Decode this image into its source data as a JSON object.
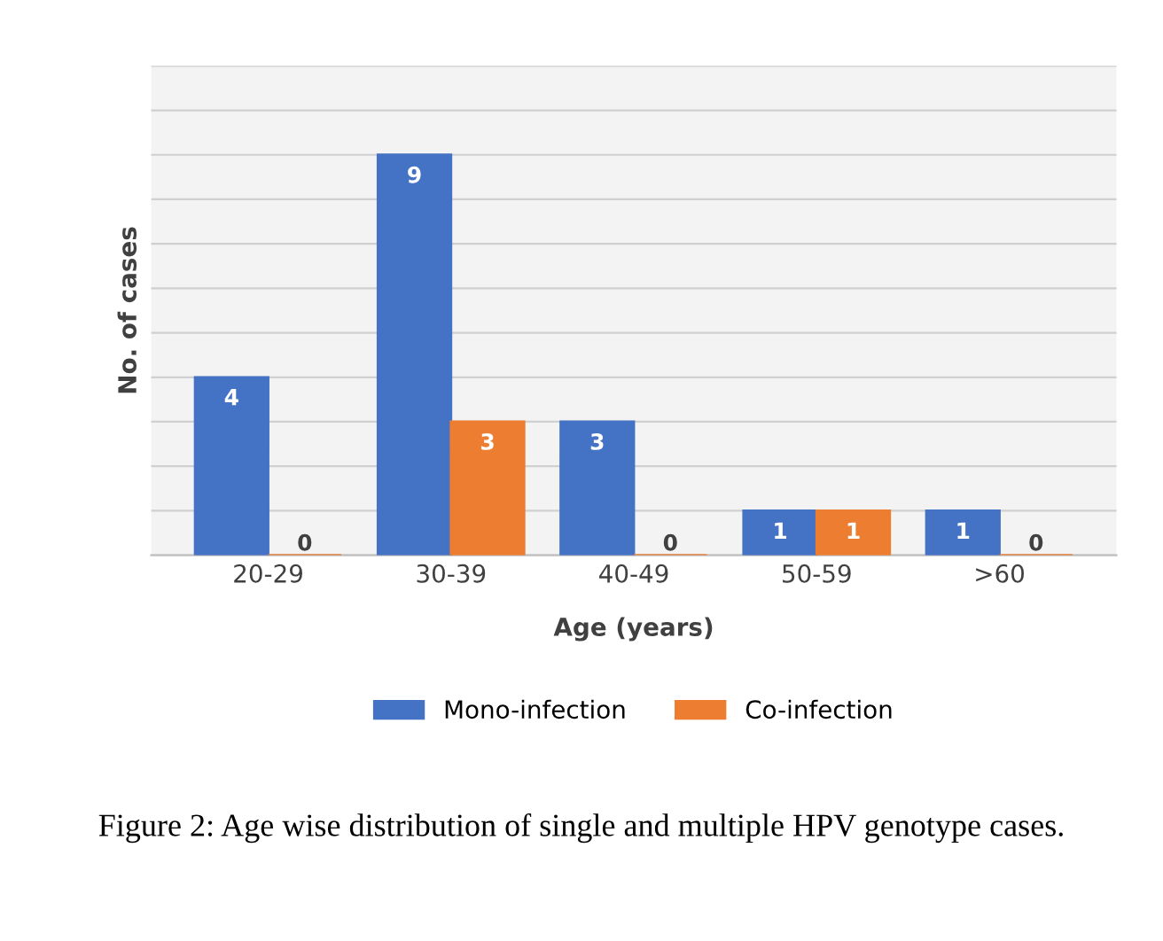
{
  "chart_data": {
    "type": "bar",
    "xlabel": "Age (years)",
    "ylabel": "No. of cases",
    "categories": [
      "20-29",
      "30-39",
      "40-49",
      "50-59",
      ">60"
    ],
    "series": [
      {
        "name": "Mono-infection",
        "color": "#4472c4",
        "values": [
          4,
          9,
          3,
          1,
          1
        ]
      },
      {
        "name": "Co-infection",
        "color": "#ed7d31",
        "values": [
          0,
          3,
          0,
          1,
          0
        ]
      }
    ],
    "ylim": [
      0,
      11
    ],
    "yticks": [
      {
        "value": 0,
        "label": null
      },
      {
        "value": 1,
        "label": null
      },
      {
        "value": 2,
        "label": null
      },
      {
        "value": 3,
        "label": null
      },
      {
        "value": 4,
        "label": null
      },
      {
        "value": 5,
        "label": null
      },
      {
        "value": 6,
        "label": null
      },
      {
        "value": 7,
        "label": null
      },
      {
        "value": 8,
        "label": null
      },
      {
        "value": 9,
        "label": null
      },
      {
        "value": 10,
        "label": null
      },
      {
        "value": 11,
        "label": null
      }
    ],
    "tick_labels": "x",
    "grid": "y",
    "legend": "bottom",
    "data_labels": true,
    "annotations": [
      "Figure 2: Age wise distribution of single and multiple HPV genotype cases."
    ]
  }
}
